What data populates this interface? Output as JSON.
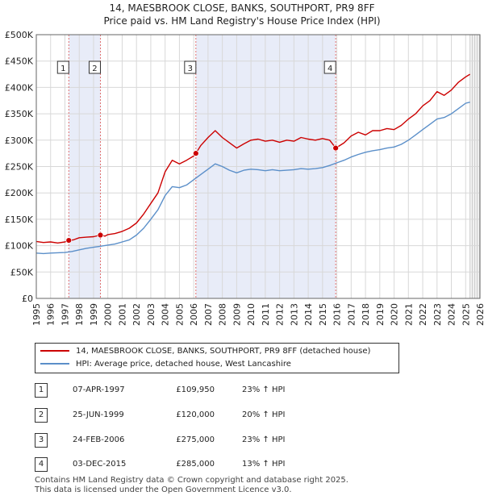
{
  "title_line1": "14, MAESBROOK CLOSE, BANKS, SOUTHPORT, PR9 8FF",
  "title_line2": "Price paid vs. HM Land Registry's House Price Index (HPI)",
  "chart_data": {
    "type": "line",
    "title": "Price paid vs. HM Land Registry's House Price Index (HPI)",
    "xlabel": "",
    "ylabel": "",
    "xlim": [
      1995.0,
      2026.0
    ],
    "ylim": [
      0,
      500000
    ],
    "x_ticks": [
      "1995",
      "1996",
      "1997",
      "1998",
      "1999",
      "2000",
      "2001",
      "2002",
      "2003",
      "2004",
      "2005",
      "2006",
      "2007",
      "2008",
      "2009",
      "2010",
      "2011",
      "2012",
      "2013",
      "2014",
      "2015",
      "2016",
      "2017",
      "2018",
      "2019",
      "2020",
      "2021",
      "2022",
      "2023",
      "2024",
      "2025",
      "2026"
    ],
    "y_ticks": [
      {
        "value": 0,
        "label": "£0"
      },
      {
        "value": 50000,
        "label": "£50K"
      },
      {
        "value": 100000,
        "label": "£100K"
      },
      {
        "value": 150000,
        "label": "£150K"
      },
      {
        "value": 200000,
        "label": "£200K"
      },
      {
        "value": 250000,
        "label": "£250K"
      },
      {
        "value": 300000,
        "label": "£300K"
      },
      {
        "value": 350000,
        "label": "£350K"
      },
      {
        "value": 400000,
        "label": "£400K"
      },
      {
        "value": 450000,
        "label": "£450K"
      },
      {
        "value": 500000,
        "label": "£500K"
      }
    ],
    "series": [
      {
        "name": "14, MAESBROOK CLOSE, BANKS, SOUTHPORT, PR9 8FF (detached house)",
        "color": "#cc0000",
        "x": [
          1995.0,
          1995.5,
          1996.0,
          1996.5,
          1997.0,
          1997.27,
          1997.6,
          1998.0,
          1998.5,
          1999.0,
          1999.48,
          1999.8,
          2000.0,
          2000.5,
          2001.0,
          2001.5,
          2002.0,
          2002.5,
          2003.0,
          2003.5,
          2004.0,
          2004.5,
          2005.0,
          2005.5,
          2006.0,
          2006.15,
          2006.5,
          2007.0,
          2007.5,
          2008.0,
          2008.5,
          2009.0,
          2009.5,
          2010.0,
          2010.5,
          2011.0,
          2011.5,
          2012.0,
          2012.5,
          2013.0,
          2013.5,
          2014.0,
          2014.5,
          2015.0,
          2015.5,
          2015.92,
          2016.5,
          2017.0,
          2017.5,
          2018.0,
          2018.5,
          2019.0,
          2019.5,
          2020.0,
          2020.5,
          2021.0,
          2021.5,
          2022.0,
          2022.5,
          2023.0,
          2023.5,
          2024.0,
          2024.5,
          2025.0,
          2025.3
        ],
        "values": [
          108000,
          106000,
          107000,
          105000,
          107000,
          109950,
          111000,
          115000,
          116000,
          117000,
          120000,
          118000,
          121000,
          123000,
          127000,
          133000,
          143000,
          160000,
          180000,
          200000,
          240000,
          262000,
          255000,
          262000,
          270000,
          275000,
          290000,
          305000,
          318000,
          305000,
          295000,
          285000,
          293000,
          300000,
          302000,
          298000,
          300000,
          296000,
          300000,
          298000,
          305000,
          302000,
          300000,
          303000,
          300000,
          285000,
          295000,
          308000,
          315000,
          310000,
          318000,
          318000,
          322000,
          320000,
          328000,
          340000,
          350000,
          365000,
          375000,
          392000,
          385000,
          395000,
          410000,
          420000,
          425000
        ]
      },
      {
        "name": "HPI: Average price, detached house, West Lancashire",
        "color": "#5b8fc9",
        "x": [
          1995.0,
          1995.5,
          1996.0,
          1996.5,
          1997.0,
          1997.5,
          1998.0,
          1998.5,
          1999.0,
          1999.5,
          2000.0,
          2000.5,
          2001.0,
          2001.5,
          2002.0,
          2002.5,
          2003.0,
          2003.5,
          2004.0,
          2004.5,
          2005.0,
          2005.5,
          2006.0,
          2006.5,
          2007.0,
          2007.5,
          2008.0,
          2008.5,
          2009.0,
          2009.5,
          2010.0,
          2010.5,
          2011.0,
          2011.5,
          2012.0,
          2012.5,
          2013.0,
          2013.5,
          2014.0,
          2014.5,
          2015.0,
          2015.5,
          2016.0,
          2016.5,
          2017.0,
          2017.5,
          2018.0,
          2018.5,
          2019.0,
          2019.5,
          2020.0,
          2020.5,
          2021.0,
          2021.5,
          2022.0,
          2022.5,
          2023.0,
          2023.5,
          2024.0,
          2024.5,
          2025.0,
          2025.3
        ],
        "values": [
          86000,
          85000,
          86000,
          86500,
          87000,
          89000,
          92000,
          95000,
          97000,
          99000,
          101000,
          103000,
          107000,
          111000,
          120000,
          133000,
          150000,
          168000,
          195000,
          212000,
          210000,
          215000,
          225000,
          235000,
          245000,
          255000,
          250000,
          243000,
          238000,
          243000,
          245000,
          244000,
          242000,
          244000,
          242000,
          243000,
          244000,
          246000,
          245000,
          246000,
          248000,
          252000,
          257000,
          262000,
          268000,
          273000,
          277000,
          280000,
          282000,
          285000,
          287000,
          292000,
          300000,
          310000,
          320000,
          330000,
          340000,
          343000,
          350000,
          360000,
          370000,
          372000
        ]
      }
    ],
    "transactions": [
      {
        "label": "1",
        "x": 1997.27,
        "price": 109950
      },
      {
        "label": "2",
        "x": 1999.48,
        "price": 120000
      },
      {
        "label": "3",
        "x": 2006.15,
        "price": 275000
      },
      {
        "label": "4",
        "x": 2015.92,
        "price": 285000
      }
    ],
    "shaded_ranges": [
      [
        1997.27,
        1999.48
      ],
      [
        2006.15,
        2015.92
      ]
    ],
    "forecast_start": 2025.3
  },
  "legend": {
    "property_label": "14, MAESBROOK CLOSE, BANKS, SOUTHPORT, PR9 8FF (detached house)",
    "hpi_label": "HPI: Average price, detached house, West Lancashire"
  },
  "transactions_table": [
    {
      "num": "1",
      "date": "07-APR-1997",
      "price": "£109,950",
      "hpi": "23% ↑ HPI"
    },
    {
      "num": "2",
      "date": "25-JUN-1999",
      "price": "£120,000",
      "hpi": "20% ↑ HPI"
    },
    {
      "num": "3",
      "date": "24-FEB-2006",
      "price": "£275,000",
      "hpi": "23% ↑ HPI"
    },
    {
      "num": "4",
      "date": "03-DEC-2015",
      "price": "£285,000",
      "hpi": "13% ↑ HPI"
    }
  ],
  "footer": {
    "line1": "Contains HM Land Registry data © Crown copyright and database right 2025.",
    "line2": "This data is licensed under the Open Government Licence v3.0."
  },
  "colors": {
    "property": "#cc0000",
    "hpi": "#5b8fc9",
    "shade": "#e8ecf8",
    "grid": "#d8d8d8"
  }
}
